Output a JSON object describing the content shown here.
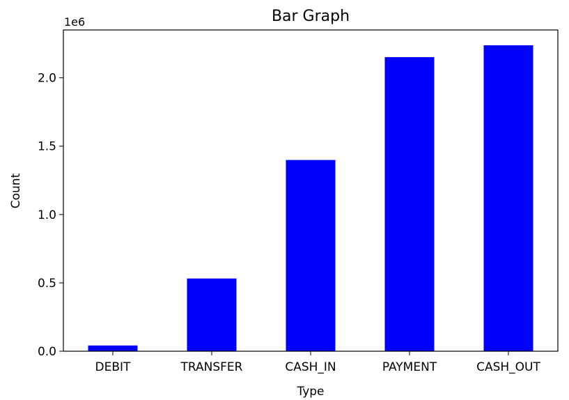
{
  "chart_data": {
    "type": "bar",
    "title": "Bar Graph",
    "xlabel": "Type",
    "ylabel": "Count",
    "y_offset_label": "1e6",
    "categories": [
      "DEBIT",
      "TRANSFER",
      "CASH_IN",
      "PAYMENT",
      "CASH_OUT"
    ],
    "values": [
      0.042,
      0.532,
      1.399,
      2.151,
      2.238
    ],
    "value_multiplier": 1000000,
    "ylim": [
      0,
      2.35
    ],
    "yticks": [
      0.0,
      0.5,
      1.0,
      1.5,
      2.0
    ],
    "ytick_labels": [
      "0.0",
      "0.5",
      "1.0",
      "1.5",
      "2.0"
    ],
    "bar_color": "#0000ff",
    "grid": false,
    "legend": "none"
  }
}
